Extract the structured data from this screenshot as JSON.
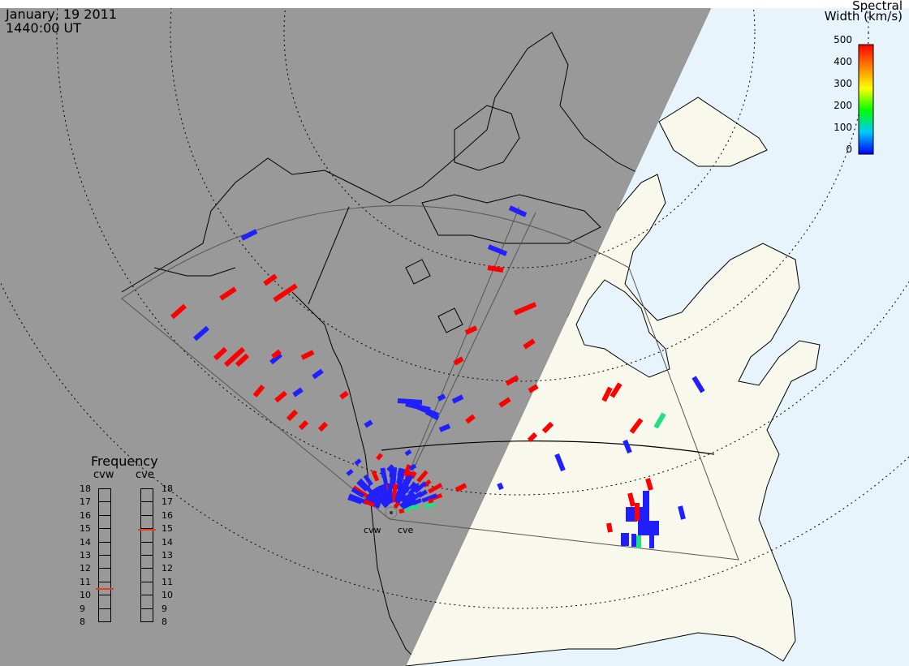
{
  "header": {
    "date": "January, 19 2011",
    "time": "1440:00 UT"
  },
  "colorbar": {
    "title_line1": "Spectral",
    "title_line2": "Width (km/s)",
    "ticks": [
      "500",
      "400",
      "300",
      "200",
      "100",
      "0"
    ],
    "range": [
      0,
      500
    ],
    "gradient": [
      "#0000ff",
      "#00c8ff",
      "#00ff00",
      "#ffff00",
      "#ff8000",
      "#ff0000"
    ]
  },
  "frequency": {
    "title": "Frequency",
    "radar_left": "cvw",
    "radar_right": "cve",
    "values": [
      "18",
      "17",
      "16",
      "15",
      "14",
      "13",
      "12",
      "11",
      "10",
      "9",
      "8"
    ],
    "cvw_freq_mhz": 10.6,
    "cve_freq_mhz": 15.1,
    "marker_color": "#e64018"
  },
  "sites": {
    "left": "cvw",
    "right": "cve"
  },
  "map": {
    "night_color": "#999999",
    "day_land_color": "#f8f8ec",
    "day_ocean_color": "#e8f4fb",
    "coast_color": "#000000"
  }
}
